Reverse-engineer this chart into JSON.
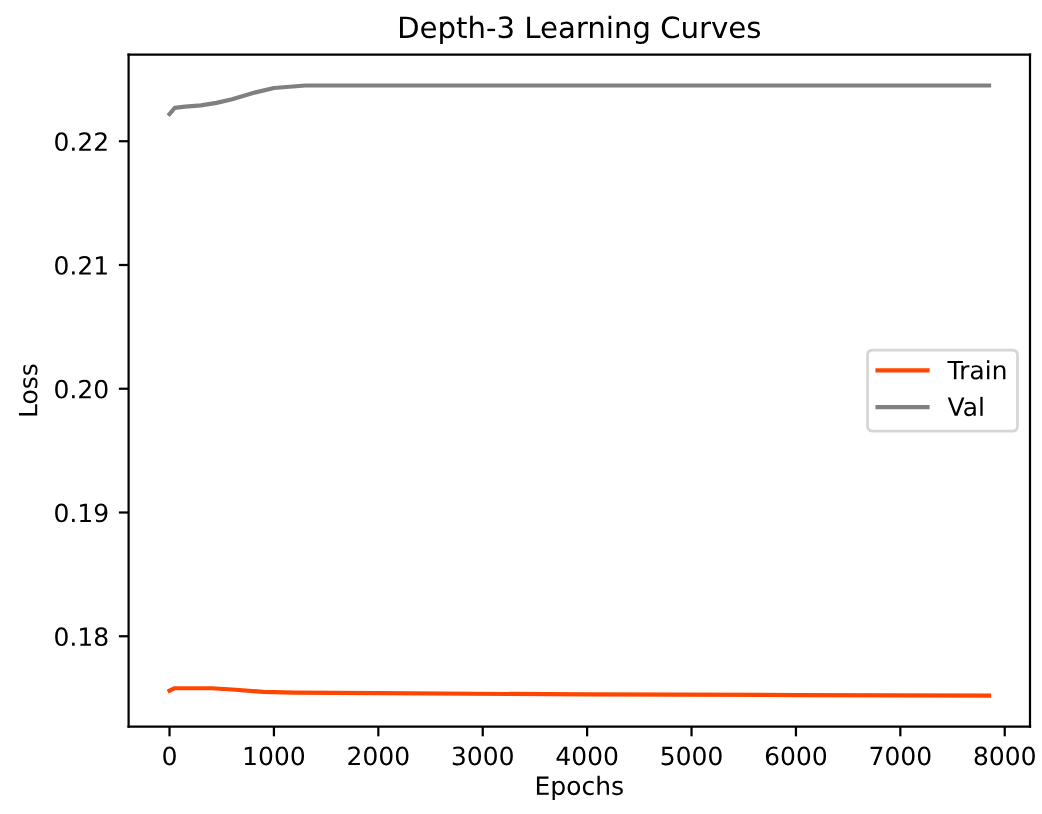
{
  "chart_data": {
    "type": "line",
    "title": "Depth-3 Learning Curves",
    "xlabel": "Epochs",
    "ylabel": "Loss",
    "series": [
      {
        "name": "Train",
        "color": "#ff4500",
        "x": [
          0,
          50,
          150,
          400,
          600,
          900,
          1200,
          2000,
          4000,
          6000,
          7850
        ],
        "values": [
          0.1756,
          0.1758,
          0.1758,
          0.1758,
          0.1757,
          0.1755,
          0.17545,
          0.1754,
          0.1753,
          0.17525,
          0.1752
        ]
      },
      {
        "name": "Val",
        "color": "#808080",
        "x": [
          0,
          50,
          150,
          300,
          450,
          600,
          800,
          1000,
          1300,
          2000,
          4000,
          6000,
          7850
        ],
        "values": [
          0.2222,
          0.2227,
          0.2228,
          0.2229,
          0.2231,
          0.2234,
          0.2239,
          0.2243,
          0.2245,
          0.2245,
          0.2245,
          0.2245,
          0.2245
        ]
      }
    ],
    "xlim": [
      -392,
      8242
    ],
    "ylim": [
      0.1727,
      0.227
    ],
    "xticks": [
      0,
      1000,
      2000,
      3000,
      4000,
      5000,
      6000,
      7000,
      8000
    ],
    "yticks": [
      {
        "value": 0.18,
        "label": "0.18"
      },
      {
        "value": 0.19,
        "label": "0.19"
      },
      {
        "value": 0.2,
        "label": "0.20"
      },
      {
        "value": 0.21,
        "label": "0.21"
      },
      {
        "value": 0.22,
        "label": "0.22"
      }
    ],
    "legend": "right",
    "grid": false
  }
}
